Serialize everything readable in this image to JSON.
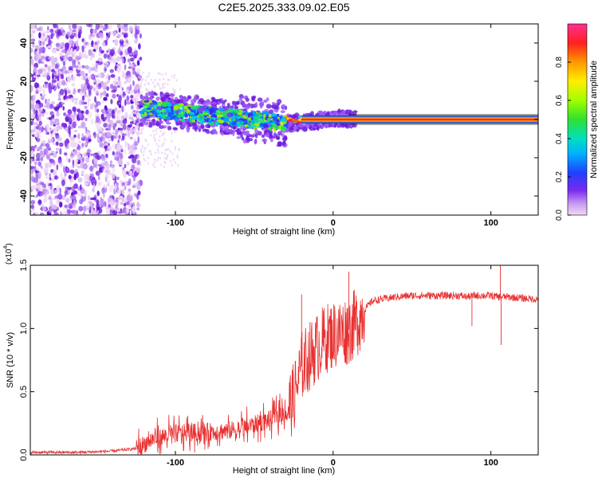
{
  "figure": {
    "title": "C2E5.2025.333.09.02.E05"
  },
  "chart_data": [
    {
      "type": "heatmap",
      "name": "spectrogram",
      "xlabel": "Height of straight line (km)",
      "ylabel": "Frequency (Hz)",
      "xlim": [
        -192,
        130
      ],
      "ylim": [
        -50,
        50
      ],
      "x_ticks": [
        -100,
        0,
        100
      ],
      "y_ticks": [
        -40,
        -20,
        0,
        20,
        40
      ],
      "x_tick_labels": [
        "-100",
        "0",
        "100"
      ],
      "y_tick_labels": [
        "-40",
        "-20",
        "0",
        "20",
        "40"
      ],
      "regions": [
        {
          "label": "noise",
          "x_range": [
            -192,
            -122
          ],
          "freq_range": [
            -50,
            50
          ],
          "amplitude": 0.1
        },
        {
          "label": "signal-onset",
          "x_range": [
            -122,
            -30
          ],
          "freq_start": 6,
          "freq_end": -2,
          "amplitude": 0.35
        },
        {
          "label": "carrier",
          "x_range": [
            10,
            130
          ],
          "freq": 0,
          "amplitude": 1.0
        }
      ],
      "colorbar": {
        "label": "Normalized spectral amplitude",
        "range": [
          0,
          1
        ],
        "ticks": [
          0.0,
          0.2,
          0.4,
          0.6,
          0.8
        ],
        "tick_labels": [
          "0.0",
          "0.2",
          "0.4",
          "0.6",
          "0.8"
        ]
      }
    },
    {
      "type": "line",
      "name": "snr",
      "xlabel": "Height of straight line (km)",
      "ylabel": "SNR (10 * v/v)",
      "multiplier_label": "(x10",
      "multiplier_exp": "4",
      "multiplier_close": ")",
      "xlim": [
        -192,
        130
      ],
      "ylim": [
        0,
        1.5
      ],
      "x_ticks": [
        -100,
        0,
        100
      ],
      "y_ticks": [
        0.0,
        0.5,
        1.0,
        1.5
      ],
      "x_tick_labels": [
        "-100",
        "0",
        "100"
      ],
      "y_tick_labels": [
        "0.0",
        "0.5",
        "1.0",
        "1.5"
      ],
      "series_color": "#e83030",
      "series": [
        {
          "name": "SNR",
          "x": [
            -192,
            -160,
            -140,
            -125,
            -115,
            -100,
            -80,
            -60,
            -40,
            -30,
            -25,
            -20,
            -15,
            -10,
            -5,
            0,
            5,
            10,
            15,
            20,
            25,
            30,
            35,
            40,
            50,
            60,
            70,
            80,
            85,
            90,
            95,
            100,
            105,
            110,
            120,
            130
          ],
          "values": [
            0.02,
            0.02,
            0.03,
            0.05,
            0.12,
            0.17,
            0.18,
            0.2,
            0.28,
            0.35,
            0.45,
            0.7,
            0.78,
            0.85,
            0.92,
            0.95,
            0.97,
            0.99,
            1.05,
            1.15,
            1.22,
            1.23,
            1.24,
            1.25,
            1.26,
            1.26,
            1.26,
            1.26,
            1.25,
            1.26,
            1.26,
            1.26,
            1.25,
            1.25,
            1.24,
            1.23
          ]
        }
      ],
      "spikes": [
        {
          "x": -20,
          "value": 1.27
        },
        {
          "x": 10,
          "value": 1.45
        },
        {
          "x": 88,
          "value": 1.02
        },
        {
          "x": 106,
          "value": 1.52
        },
        {
          "x": 106.5,
          "value": 0.87
        }
      ]
    }
  ]
}
